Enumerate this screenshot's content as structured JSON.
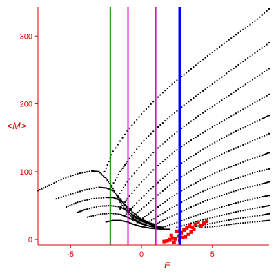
{
  "chart_data": {
    "type": "scatter",
    "title": "",
    "xlabel": "E",
    "ylabel": "<M>",
    "xlim": [
      -7.3,
      9.0
    ],
    "ylim": [
      -8,
      343
    ],
    "grid": false,
    "xticks": [
      -5,
      0,
      5
    ],
    "yticks": [
      0,
      100,
      200,
      300
    ],
    "colors": {
      "axes": "#e00000",
      "points": "#000000",
      "highlight": "#ff0000"
    },
    "vertical_lines": [
      {
        "x": -2.2,
        "color": "#008000",
        "width": 2
      },
      {
        "x": -0.95,
        "color": "#dd00dd",
        "width": 2
      },
      {
        "x": 1.0,
        "color": "#dd00dd",
        "width": 2
      },
      {
        "x": 2.7,
        "color": "#0000ff",
        "width": 4
      }
    ],
    "series": [
      {
        "color": "#000000",
        "x": [
          -7.3,
          -6.5,
          -5.5,
          -4.5,
          -3.5,
          -3.0,
          -2.5,
          -2.0,
          -1.5,
          -1.0,
          -0.5,
          0.0,
          0.5,
          1.0,
          1.5
        ],
        "y": [
          72,
          80,
          90,
          97,
          101,
          100,
          90,
          75,
          55,
          40,
          30,
          24,
          20,
          18,
          16
        ]
      },
      {
        "color": "#000000",
        "x": [
          -6.0,
          -5.0,
          -4.0,
          -3.0,
          -2.5,
          -2.0,
          -1.5,
          -1.0,
          -0.5,
          0.0,
          0.5,
          1.0
        ],
        "y": [
          60,
          67,
          73,
          77,
          76,
          72,
          60,
          45,
          33,
          27,
          23,
          20
        ]
      },
      {
        "color": "#000000",
        "x": [
          -5.3,
          -4.5,
          -3.5,
          -2.5,
          -2.0,
          -1.5,
          -1.0,
          -0.5,
          0.0,
          0.5,
          1.0
        ],
        "y": [
          48,
          55,
          60,
          62,
          62,
          58,
          48,
          38,
          30,
          25,
          22
        ]
      },
      {
        "color": "#000000",
        "x": [
          -4.5,
          -4.0,
          -3.0,
          -2.2,
          -1.5,
          -1.0,
          -0.5,
          0.0,
          0.5,
          1.0
        ],
        "y": [
          40,
          44,
          49,
          50,
          48,
          42,
          35,
          28,
          24,
          21
        ]
      },
      {
        "color": "#000000",
        "x": [
          -3.8,
          -3.0,
          -2.2,
          -1.5,
          -1.0,
          -0.5,
          0.0,
          0.5,
          1.0,
          1.5
        ],
        "y": [
          33,
          37,
          39,
          37,
          33,
          28,
          23,
          20,
          19,
          18
        ]
      },
      {
        "color": "#000000",
        "x": [
          -2.5,
          -2.0,
          -1.5,
          -1.0,
          -0.5,
          0.0,
          0.5,
          1.0,
          1.5,
          2.0
        ],
        "y": [
          26,
          28,
          28,
          26,
          22,
          19,
          17,
          16,
          15,
          15
        ]
      },
      {
        "color": "#000000",
        "x": [
          -2.6,
          -2.0,
          -1.0,
          0.0,
          1.0,
          2.0,
          3.0,
          4.0,
          5.0,
          6.0,
          7.0,
          8.0,
          9.0
        ],
        "y": [
          100,
          130,
          160,
          185,
          207,
          226,
          243,
          260,
          276,
          292,
          307,
          322,
          340
        ]
      },
      {
        "color": "#000000",
        "x": [
          -2.2,
          -1.5,
          -1.0,
          0.0,
          1.0,
          2.0,
          3.0,
          4.0,
          5.0,
          6.0,
          7.0,
          8.0,
          9.0
        ],
        "y": [
          75,
          100,
          115,
          142,
          163,
          181,
          198,
          214,
          229,
          245,
          260,
          275,
          290
        ]
      },
      {
        "color": "#000000",
        "x": [
          -1.8,
          -1.0,
          0.0,
          1.0,
          2.0,
          3.0,
          4.0,
          5.0,
          6.0,
          7.0,
          8.0,
          9.0
        ],
        "y": [
          60,
          85,
          110,
          132,
          150,
          167,
          182,
          196,
          210,
          224,
          238,
          252
        ]
      },
      {
        "color": "#000000",
        "x": [
          -1.5,
          -1.0,
          0.0,
          1.0,
          2.0,
          3.0,
          4.0,
          5.0,
          6.0,
          7.0,
          8.0,
          9.0
        ],
        "y": [
          45,
          60,
          85,
          106,
          124,
          140,
          153,
          166,
          178,
          190,
          202,
          214
        ]
      },
      {
        "color": "#000000",
        "x": [
          -1.2,
          -0.5,
          0.5,
          1.5,
          2.5,
          3.5,
          4.5,
          5.5,
          6.5,
          7.5,
          8.5,
          9.0
        ],
        "y": [
          35,
          50,
          72,
          90,
          108,
          122,
          135,
          147,
          158,
          168,
          178,
          183
        ]
      },
      {
        "color": "#000000",
        "x": [
          -0.8,
          0.0,
          1.0,
          2.0,
          3.0,
          4.0,
          5.0,
          6.0,
          7.0,
          8.0,
          9.0
        ],
        "y": [
          30,
          45,
          63,
          80,
          95,
          108,
          119,
          129,
          138,
          147,
          156
        ]
      },
      {
        "color": "#000000",
        "x": [
          -0.3,
          0.5,
          1.5,
          2.5,
          3.5,
          4.5,
          5.5,
          6.5,
          7.5,
          8.5,
          9.0
        ],
        "y": [
          25,
          38,
          53,
          68,
          80,
          91,
          101,
          109,
          117,
          124,
          128
        ]
      },
      {
        "color": "#000000",
        "x": [
          0.2,
          1.0,
          2.0,
          3.0,
          4.0,
          5.0,
          6.0,
          7.0,
          8.0,
          9.0
        ],
        "y": [
          22,
          32,
          45,
          57,
          68,
          77,
          85,
          92,
          99,
          104
        ]
      },
      {
        "color": "#000000",
        "x": [
          0.8,
          1.5,
          2.5,
          3.5,
          4.5,
          5.5,
          6.5,
          7.5,
          8.5,
          9.0
        ],
        "y": [
          20,
          28,
          38,
          48,
          57,
          64,
          71,
          77,
          82,
          85
        ]
      },
      {
        "color": "#000000",
        "x": [
          1.5,
          2.5,
          3.5,
          4.5,
          5.5,
          6.5,
          7.5,
          8.5,
          9.0
        ],
        "y": [
          18,
          25,
          33,
          40,
          47,
          53,
          58,
          63,
          65
        ]
      },
      {
        "color": "#000000",
        "x": [
          2.5,
          3.5,
          4.5,
          5.5,
          6.5,
          7.5,
          8.5,
          9.0
        ],
        "y": [
          18,
          24,
          30,
          35,
          40,
          44,
          48,
          50
        ]
      },
      {
        "color": "#000000",
        "x": [
          3.5,
          4.5,
          5.5,
          6.5,
          7.5,
          8.5,
          9.0
        ],
        "y": [
          18,
          22,
          26,
          30,
          33,
          36,
          38
        ]
      },
      {
        "color": "#000000",
        "x": [
          4.5,
          5.5,
          6.5,
          7.5,
          8.5,
          9.0
        ],
        "y": [
          18,
          20,
          23,
          25,
          27,
          28
        ]
      },
      {
        "color": "#ff0000",
        "x": [
          1.6,
          1.8,
          2.0,
          2.2,
          2.4,
          2.6,
          2.8,
          3.0,
          3.2,
          3.4,
          3.6,
          3.8,
          4.0,
          4.2,
          2.1,
          2.5,
          2.9,
          3.3,
          3.7,
          2.3,
          2.7,
          3.1,
          3.5,
          4.4,
          4.6
        ],
        "y": [
          -3,
          -2,
          0,
          2,
          1,
          5,
          10,
          14,
          17,
          20,
          18,
          22,
          25,
          20,
          6,
          12,
          3,
          8,
          15,
          -4,
          -1,
          4,
          11,
          24,
          27
        ]
      }
    ]
  }
}
